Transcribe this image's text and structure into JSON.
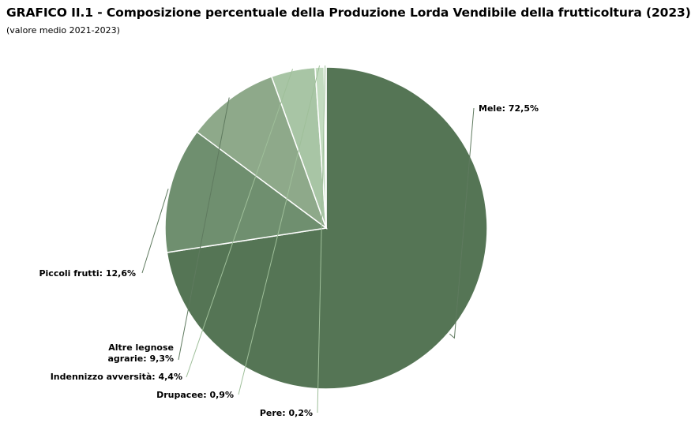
{
  "title": "GRAFICO II.1 - Composizione percentuale della Produzione Lorda Vendibile della frutticoltura (2023)",
  "subtitle": "(valore medio 2021-2023)",
  "chart_data": {
    "type": "pie",
    "slices": [
      {
        "label": "Mele",
        "value": 72.5,
        "label_text": "Mele: 72,5%",
        "color": "#557555"
      },
      {
        "label": "Piccoli frutti",
        "value": 12.6,
        "label_text": "Piccoli frutti: 12,6%",
        "color": "#6f8f6f"
      },
      {
        "label": "Altre legnose agrarie",
        "value": 9.3,
        "label_text": "Altre legnose agrarie: 9,3%",
        "label_lines": [
          "Altre legnose",
          "agrarie: 9,3%"
        ],
        "color": "#8ea98a"
      },
      {
        "label": "Indennizzo avversità",
        "value": 4.4,
        "label_text": "Indennizzo avversità: 4,4%",
        "color": "#a8c5a5"
      },
      {
        "label": "Drupacee",
        "value": 0.9,
        "label_text": "Drupacee: 0,9%",
        "color": "#c3dcc0"
      },
      {
        "label": "Pere",
        "value": 0.2,
        "label_text": "Pere: 0,2%",
        "color": "#d9eed6"
      }
    ],
    "start_angle_deg": 0,
    "direction": "clockwise",
    "legend": "none",
    "data_labels": "outside with leader lines"
  }
}
